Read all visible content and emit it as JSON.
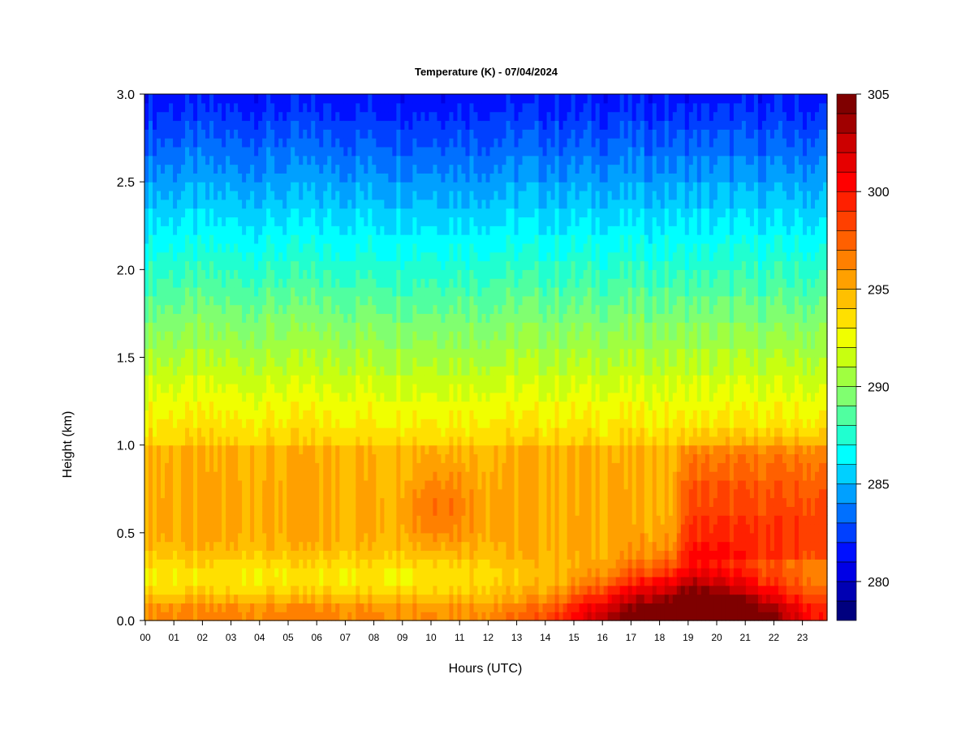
{
  "chart_data": {
    "type": "heatmap",
    "title": "Temperature (K) - 07/04/2024",
    "xlabel": "Hours (UTC)",
    "ylabel": "Height (km)",
    "xlim": [
      0,
      24
    ],
    "ylim": [
      0.0,
      3.0
    ],
    "x_ticks": [
      "00",
      "01",
      "02",
      "03",
      "04",
      "05",
      "06",
      "07",
      "08",
      "09",
      "10",
      "11",
      "12",
      "13",
      "14",
      "15",
      "16",
      "17",
      "18",
      "19",
      "20",
      "21",
      "22",
      "23"
    ],
    "y_ticks": [
      "0.0",
      "0.5",
      "1.0",
      "1.5",
      "2.0",
      "2.5",
      "3.0"
    ],
    "colorbar": {
      "min": 278,
      "max": 305,
      "ticks": [
        "280",
        "285",
        "290",
        "295",
        "300",
        "305"
      ],
      "tick_values": [
        280,
        285,
        290,
        295,
        300,
        305
      ],
      "levels": 27,
      "colors": [
        "#00007f",
        "#0000b3",
        "#0000e6",
        "#0010ff",
        "#0040ff",
        "#0070ff",
        "#00a0ff",
        "#00d0ff",
        "#00ffff",
        "#20ffd0",
        "#50ffa0",
        "#80ff70",
        "#a0ff40",
        "#c8ff10",
        "#f0ff00",
        "#ffe000",
        "#ffc000",
        "#ffa000",
        "#ff8000",
        "#ff6000",
        "#ff4000",
        "#ff2000",
        "#ff0000",
        "#e60000",
        "#cc0000",
        "#a00000",
        "#7f0000"
      ]
    },
    "description_points": [
      {
        "hour": 0,
        "surface_K": 295,
        "at_1km_K": 294,
        "at_2km_K": 288,
        "at_3km_K": 281
      },
      {
        "hour": 10,
        "surface_K": 294,
        "at_0_7km_K": 297,
        "at_2km_K": 288,
        "at_3km_K": 281
      },
      {
        "hour": 14,
        "surface_K": 301,
        "at_1km_K": 293,
        "at_3km_K": 282
      },
      {
        "hour": 18,
        "surface_K": 305,
        "at_0_7km_K": 297,
        "at_2km_K": 288,
        "at_3km_K": 282
      },
      {
        "hour": 22,
        "surface_K": 301,
        "at_0_7km_K": 298,
        "at_2km_K": 288,
        "at_3km_K": 281
      }
    ]
  }
}
